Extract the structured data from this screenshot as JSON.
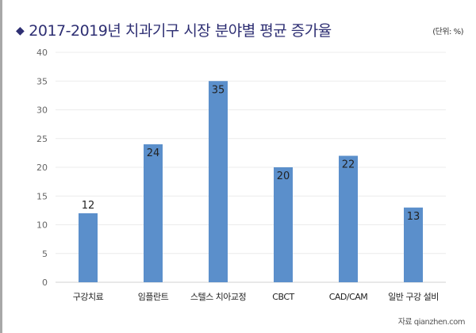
{
  "chart_data": {
    "type": "bar",
    "title": "2017-2019년  치과기구 시장 분야별 평균 증가율",
    "unit_label": "(단위: %)",
    "source": "자료 qianzhen.com",
    "categories": [
      "구강치료",
      "임플란트",
      "스텔스 치아교정",
      "CBCT",
      "CAD/CAM",
      "일반 구강 설비"
    ],
    "values": [
      12,
      24,
      35,
      20,
      22,
      13
    ],
    "ylim": [
      0,
      40
    ],
    "yticks": [
      0,
      5,
      10,
      15,
      20,
      25,
      30,
      35,
      40
    ],
    "grid": true,
    "xlabel": "",
    "ylabel": "",
    "bar_color": "#5b8fcb",
    "title_color": "#2e2f73"
  }
}
